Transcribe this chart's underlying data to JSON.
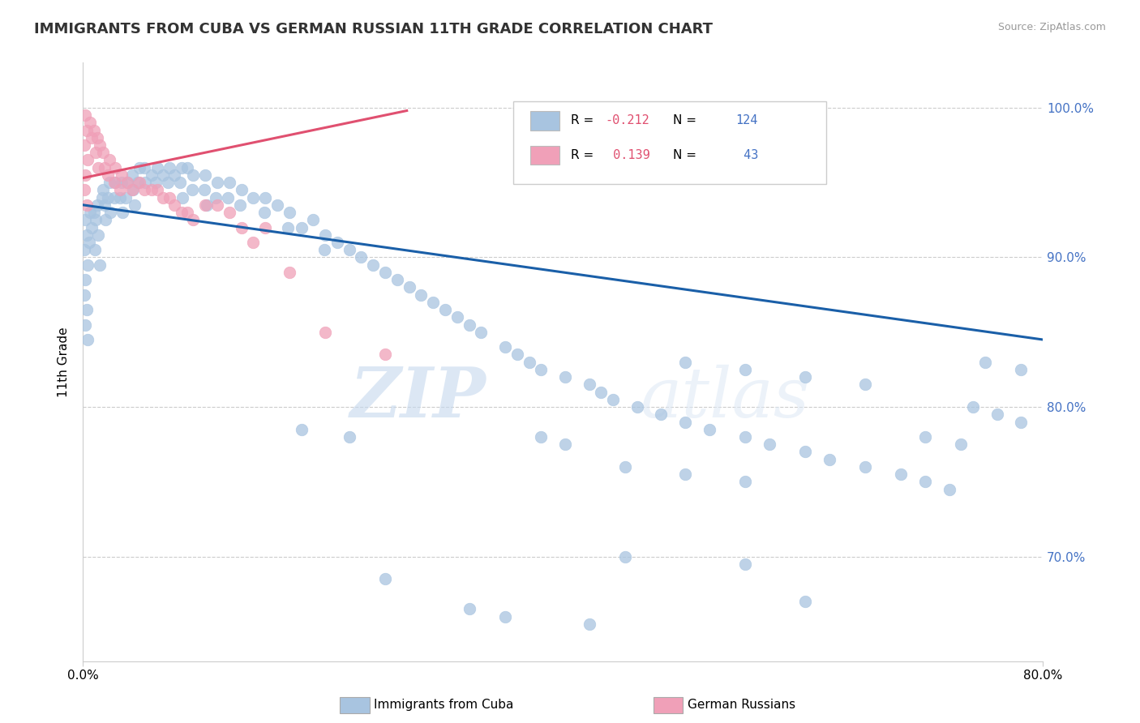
{
  "title": "IMMIGRANTS FROM CUBA VS GERMAN RUSSIAN 11TH GRADE CORRELATION CHART",
  "source": "Source: ZipAtlas.com",
  "ylabel": "11th Grade",
  "xlim": [
    0.0,
    0.8
  ],
  "ylim": [
    0.63,
    1.03
  ],
  "yticks": [
    0.7,
    0.8,
    0.9,
    1.0
  ],
  "ytick_labels": [
    "70.0%",
    "80.0%",
    "90.0%",
    "100.0%"
  ],
  "xtick_labels": [
    "0.0%",
    "80.0%"
  ],
  "blue_color": "#a8c4e0",
  "pink_color": "#f0a0b8",
  "blue_line_color": "#1a5fa8",
  "pink_line_color": "#e05070",
  "watermark_zip": "ZIP",
  "watermark_atlas": "atlas",
  "blue_scatter_x": [
    0.002,
    0.003,
    0.001,
    0.004,
    0.002,
    0.001,
    0.003,
    0.002,
    0.004,
    0.006,
    0.007,
    0.005,
    0.009,
    0.012,
    0.011,
    0.013,
    0.01,
    0.014,
    0.016,
    0.017,
    0.018,
    0.019,
    0.022,
    0.021,
    0.023,
    0.027,
    0.026,
    0.032,
    0.031,
    0.033,
    0.037,
    0.036,
    0.041,
    0.042,
    0.043,
    0.047,
    0.046,
    0.051,
    0.052,
    0.057,
    0.062,
    0.061,
    0.067,
    0.072,
    0.071,
    0.076,
    0.082,
    0.081,
    0.083,
    0.087,
    0.092,
    0.091,
    0.102,
    0.101,
    0.103,
    0.112,
    0.111,
    0.122,
    0.121,
    0.132,
    0.131,
    0.142,
    0.152,
    0.151,
    0.162,
    0.172,
    0.171,
    0.182,
    0.192,
    0.202,
    0.201,
    0.212,
    0.222,
    0.232,
    0.242,
    0.252,
    0.262,
    0.272,
    0.282,
    0.292,
    0.302,
    0.312,
    0.322,
    0.332,
    0.352,
    0.362,
    0.372,
    0.382,
    0.402,
    0.422,
    0.432,
    0.442,
    0.462,
    0.482,
    0.502,
    0.522,
    0.552,
    0.572,
    0.602,
    0.622,
    0.652,
    0.682,
    0.702,
    0.722,
    0.742,
    0.762,
    0.782,
    0.502,
    0.552,
    0.602,
    0.652,
    0.702,
    0.732,
    0.752,
    0.782,
    0.382,
    0.402,
    0.452,
    0.552,
    0.602,
    0.322,
    0.352,
    0.422,
    0.452,
    0.502,
    0.552,
    0.182,
    0.222,
    0.252
  ],
  "blue_scatter_y": [
    0.925,
    0.915,
    0.905,
    0.895,
    0.885,
    0.875,
    0.865,
    0.855,
    0.845,
    0.93,
    0.92,
    0.91,
    0.93,
    0.935,
    0.925,
    0.915,
    0.905,
    0.895,
    0.94,
    0.945,
    0.935,
    0.925,
    0.95,
    0.94,
    0.93,
    0.95,
    0.94,
    0.95,
    0.94,
    0.93,
    0.95,
    0.94,
    0.955,
    0.945,
    0.935,
    0.96,
    0.95,
    0.96,
    0.95,
    0.955,
    0.96,
    0.95,
    0.955,
    0.96,
    0.95,
    0.955,
    0.96,
    0.95,
    0.94,
    0.96,
    0.955,
    0.945,
    0.955,
    0.945,
    0.935,
    0.95,
    0.94,
    0.95,
    0.94,
    0.945,
    0.935,
    0.94,
    0.94,
    0.93,
    0.935,
    0.93,
    0.92,
    0.92,
    0.925,
    0.915,
    0.905,
    0.91,
    0.905,
    0.9,
    0.895,
    0.89,
    0.885,
    0.88,
    0.875,
    0.87,
    0.865,
    0.86,
    0.855,
    0.85,
    0.84,
    0.835,
    0.83,
    0.825,
    0.82,
    0.815,
    0.81,
    0.805,
    0.8,
    0.795,
    0.79,
    0.785,
    0.78,
    0.775,
    0.77,
    0.765,
    0.76,
    0.755,
    0.75,
    0.745,
    0.8,
    0.795,
    0.79,
    0.83,
    0.825,
    0.82,
    0.815,
    0.78,
    0.775,
    0.83,
    0.825,
    0.78,
    0.775,
    0.7,
    0.695,
    0.67,
    0.665,
    0.66,
    0.655,
    0.76,
    0.755,
    0.75,
    0.785,
    0.78,
    0.685
  ],
  "pink_scatter_x": [
    0.002,
    0.003,
    0.001,
    0.004,
    0.002,
    0.001,
    0.003,
    0.006,
    0.007,
    0.009,
    0.012,
    0.011,
    0.013,
    0.014,
    0.017,
    0.018,
    0.022,
    0.021,
    0.027,
    0.026,
    0.032,
    0.031,
    0.037,
    0.041,
    0.047,
    0.051,
    0.057,
    0.062,
    0.067,
    0.072,
    0.076,
    0.082,
    0.087,
    0.092,
    0.102,
    0.112,
    0.122,
    0.132,
    0.142,
    0.152,
    0.172,
    0.202,
    0.252
  ],
  "pink_scatter_y": [
    0.995,
    0.985,
    0.975,
    0.965,
    0.955,
    0.945,
    0.935,
    0.99,
    0.98,
    0.985,
    0.98,
    0.97,
    0.96,
    0.975,
    0.97,
    0.96,
    0.965,
    0.955,
    0.96,
    0.95,
    0.955,
    0.945,
    0.95,
    0.945,
    0.95,
    0.945,
    0.945,
    0.945,
    0.94,
    0.94,
    0.935,
    0.93,
    0.93,
    0.925,
    0.935,
    0.935,
    0.93,
    0.92,
    0.91,
    0.92,
    0.89,
    0.85,
    0.835
  ],
  "blue_trend_x": [
    0.0,
    0.8
  ],
  "blue_trend_y": [
    0.935,
    0.845
  ],
  "pink_trend_x": [
    0.0,
    0.27
  ],
  "pink_trend_y": [
    0.953,
    0.998
  ]
}
